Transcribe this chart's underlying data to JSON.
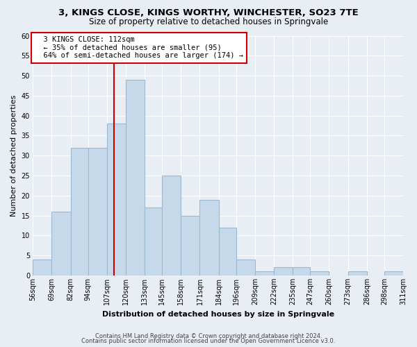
{
  "title1": "3, KINGS CLOSE, KINGS WORTHY, WINCHESTER, SO23 7TE",
  "title2": "Size of property relative to detached houses in Springvale",
  "xlabel": "Distribution of detached houses by size in Springvale",
  "ylabel": "Number of detached properties",
  "footer1": "Contains HM Land Registry data © Crown copyright and database right 2024.",
  "footer2": "Contains public sector information licensed under the Open Government Licence v3.0.",
  "bin_labels": [
    "56sqm",
    "69sqm",
    "82sqm",
    "94sqm",
    "107sqm",
    "120sqm",
    "133sqm",
    "145sqm",
    "158sqm",
    "171sqm",
    "184sqm",
    "196sqm",
    "209sqm",
    "222sqm",
    "235sqm",
    "247sqm",
    "260sqm",
    "273sqm",
    "286sqm",
    "298sqm",
    "311sqm"
  ],
  "label_vals": [
    56,
    69,
    82,
    94,
    107,
    120,
    133,
    145,
    158,
    171,
    184,
    196,
    209,
    222,
    235,
    247,
    260,
    273,
    286,
    298,
    311
  ],
  "bar_values": [
    4,
    16,
    32,
    32,
    38,
    49,
    17,
    25,
    15,
    19,
    12,
    4,
    1,
    2,
    2,
    1,
    0,
    1,
    0,
    1
  ],
  "bar_color": "#c6d9ea",
  "bar_edge_color": "#9ab8d0",
  "property_line_x": 112,
  "property_line_label": "3 KINGS CLOSE: 112sqm",
  "annotation_line1": "← 35% of detached houses are smaller (95)",
  "annotation_line2": "64% of semi-detached houses are larger (174) →",
  "ylim": [
    0,
    60
  ],
  "yticks": [
    0,
    5,
    10,
    15,
    20,
    25,
    30,
    35,
    40,
    45,
    50,
    55,
    60
  ],
  "vline_color": "#cc0000",
  "annotation_box_facecolor": "#ffffff",
  "annotation_box_edgecolor": "#cc0000",
  "bg_color": "#e8eef4",
  "grid_color": "#ffffff",
  "title1_fontsize": 9.5,
  "title2_fontsize": 8.5,
  "axis_label_fontsize": 8,
  "tick_fontsize": 7,
  "annotation_fontsize": 7.5,
  "footer_fontsize": 6
}
